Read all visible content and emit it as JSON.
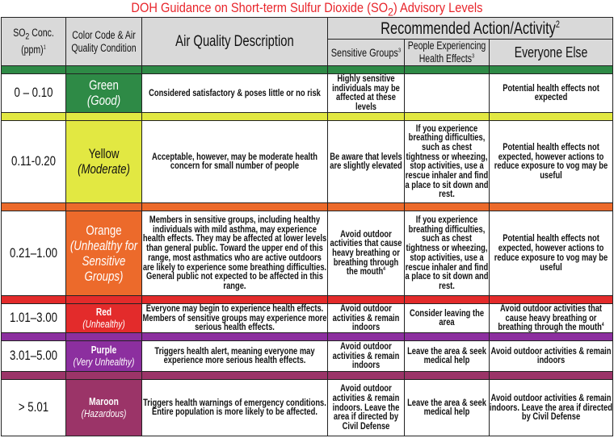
{
  "title": {
    "prefix": "DOH Guidance on Short-term Sulfur Dioxide (SO",
    "sub": "2",
    "suffix": ") Advisory Levels"
  },
  "header": {
    "conc": {
      "text": "SO",
      "sub": "2",
      "rest": " Conc. (ppm)",
      "sup": "1"
    },
    "color_code": "Color Code & Air Quality Condition",
    "description": "Air Quality Description",
    "recommended": {
      "text": "Recommended Action/Activity",
      "sup": "2"
    },
    "sensitive": {
      "text": "Sensitive Groups",
      "sup": "3"
    },
    "people": {
      "text": "People Experiencing Health Effects",
      "sup": "3"
    },
    "everyone": "Everyone Else"
  },
  "rows": [
    {
      "color": "#2e8a46",
      "text_color": "#ffffff",
      "conc": "0 – 0.10",
      "level": "Green",
      "condition": "(Good)",
      "description": "Considered satisfactory & poses little or no risk",
      "sensitive": "Highly sensitive individuals may be affected at these levels",
      "sensitive_sup": "",
      "people": "",
      "everyone": "Potential health effects not expected",
      "everyone_sup": ""
    },
    {
      "color": "#e2e842",
      "text_color": "#111111",
      "conc": "0.11-0.20",
      "level": "Yellow",
      "condition": "(Moderate)",
      "description": "Acceptable, however, may be moderate health concern for small number of people",
      "sensitive": "Be aware that levels are slightly elevated",
      "sensitive_sup": "",
      "people": "If you experience breathing difficulties, such as chest tightness or wheezing, stop activities, use a rescue inhaler and find a place to sit down and rest.",
      "everyone": "Potential health effects not expected, however actions to reduce exposure to vog may be useful",
      "everyone_sup": ""
    },
    {
      "color": "#ec6a2b",
      "text_color": "#ffffff",
      "conc": "0.21–1.00",
      "level": "Orange",
      "condition": "(Unhealthy for Sensitive Groups)",
      "description": "Members in sensitive groups, including healthy individuals with mild asthma, may experience health effects.  They may be affected at lower levels than general public.  Toward the upper end of this range, most asthmatics who are active outdoors are likely to experience some breathing difficulties.  General public not expected to be affected in this range.",
      "sensitive": "Avoid outdoor activities that cause heavy breathing or breathing through the mouth",
      "sensitive_sup": "4",
      "people": "If you experience breathing difficulties, such as chest tightness or wheezing, stop activities, use a rescue inhaler and find a place to sit down and rest.",
      "everyone": "Potential health effects not expected, however actions to reduce exposure to vog may be useful",
      "everyone_sup": ""
    },
    {
      "color": "#e32b2b",
      "text_color": "#ffffff",
      "conc": "1.01–3.00",
      "level": "Red",
      "condition": "(Unhealthy)",
      "description": "Everyone may begin to experience health effects.  Members of sensitive groups may experience more serious health effects.",
      "sensitive": "Avoid outdoor activities  & remain indoors",
      "sensitive_sup": "",
      "people": "Consider leaving the area",
      "everyone": "Avoid outdoor activities that cause heavy breathing or breathing through the mouth",
      "everyone_sup": "4"
    },
    {
      "color": "#8c2f9f",
      "text_color": "#ffffff",
      "conc": "3.01–5.00",
      "level": "Purple",
      "condition": "(Very Unhealthy)",
      "description": "Triggers health alert, meaning everyone may experience more serious health effects.",
      "sensitive": "Avoid outdoor activities & remain indoors",
      "sensitive_sup": "",
      "people": "Leave the area & seek medical help",
      "everyone": "Avoid outdoor activities & remain indoors",
      "everyone_sup": ""
    },
    {
      "color": "#9b3468",
      "text_color": "#ffffff",
      "conc": "> 5.01",
      "level": "Maroon",
      "condition": "(Hazardous)",
      "description": "Triggers health warnings of emergency conditions.  Entire population is more likely to be affected.",
      "sensitive": "Avoid outdoor activities & remain indoors. Leave the area if directed by Civil Defense",
      "sensitive_sup": "",
      "people": "Leave the area & seek medical help",
      "everyone": "Avoid outdoor activities & remain indoors. Leave the area if directed by Civil Defense",
      "everyone_sup": ""
    }
  ]
}
